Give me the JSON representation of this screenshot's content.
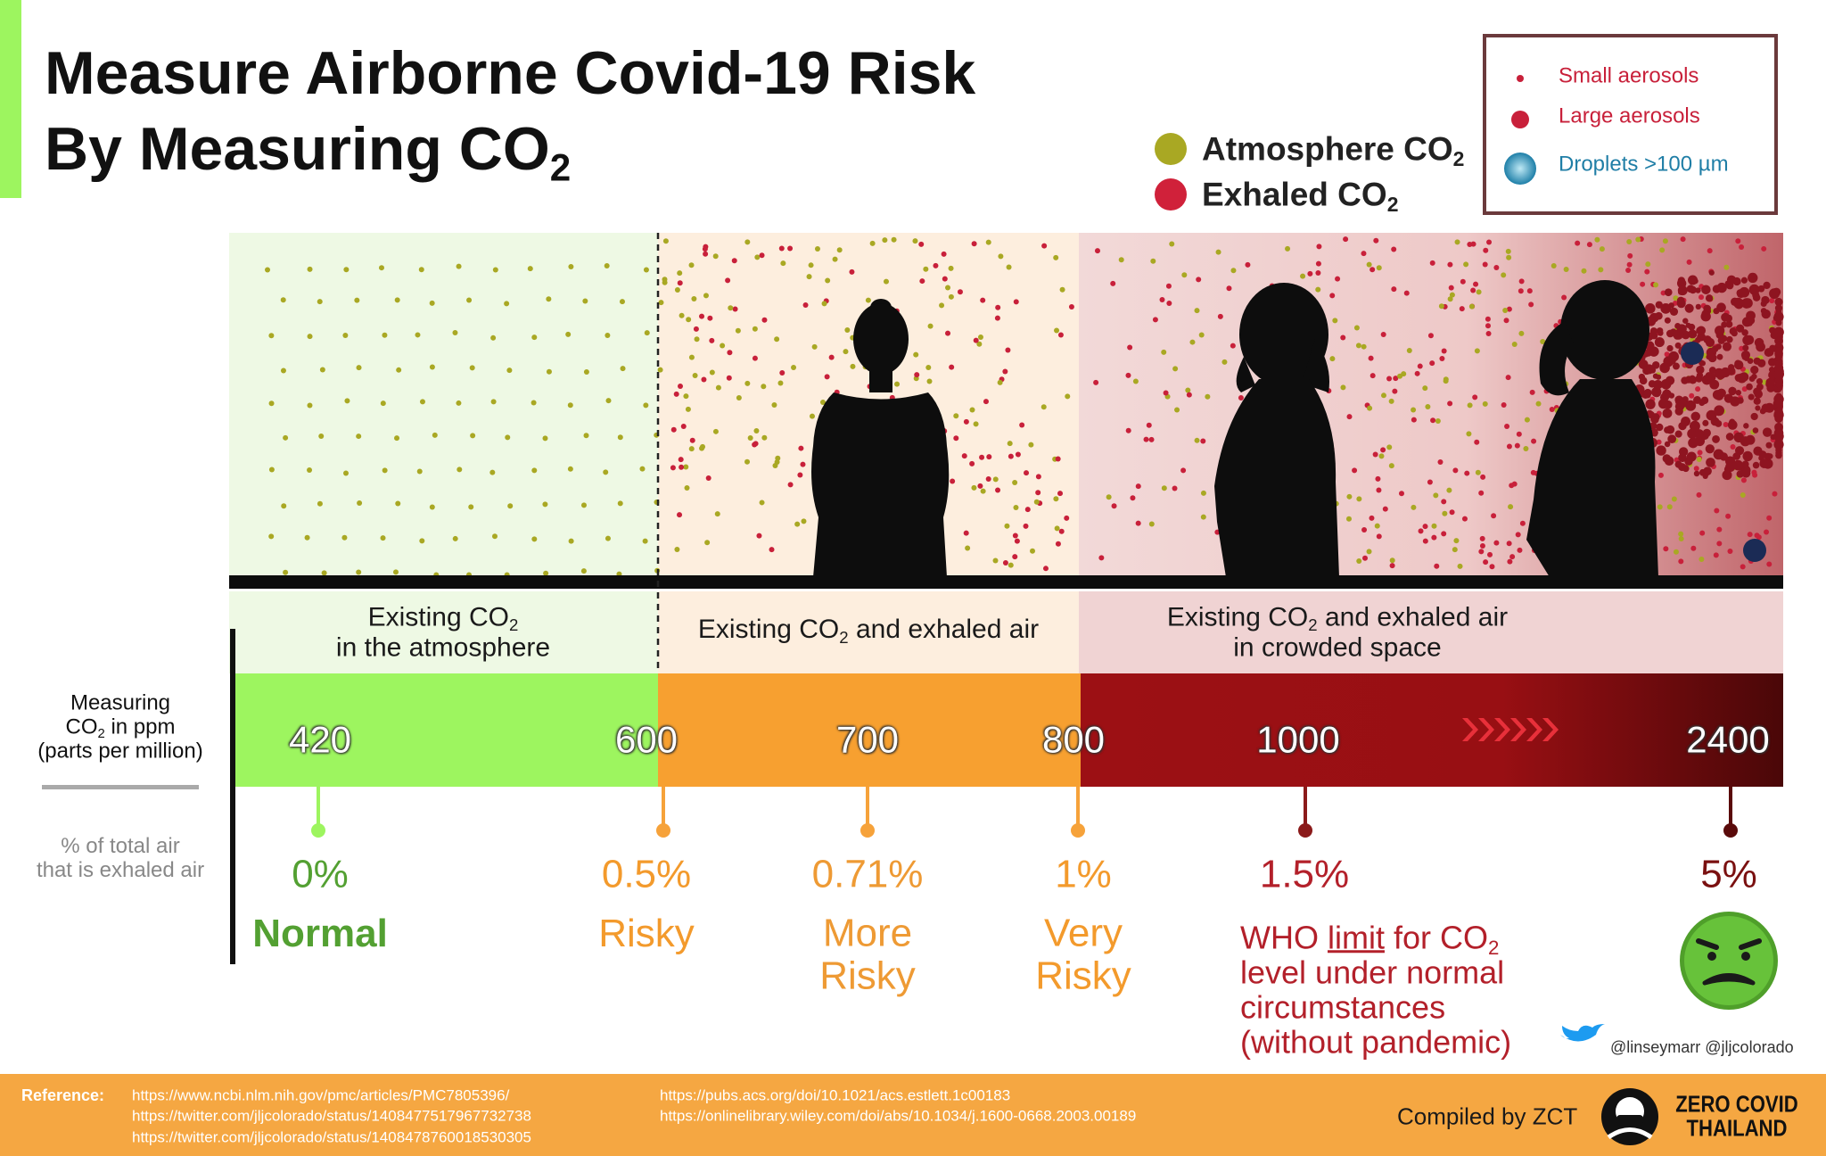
{
  "title": {
    "lines": [
      [
        "Measure Airborne Covid-19 Risk"
      ],
      [
        "By Measuring CO",
        {
          "sub": "2"
        }
      ]
    ]
  },
  "legend": [
    {
      "label": [
        "Atmosphere CO",
        {
          "sub": "2"
        }
      ],
      "color": "#a9a823"
    },
    {
      "label": [
        "Exhaled CO",
        {
          "sub": "2"
        }
      ],
      "color": "#d0213a"
    }
  ],
  "aerosol_legend": [
    "Small aerosols",
    "Large aerosols",
    "Droplets >100 µm"
  ],
  "zones": [
    {
      "lines": [
        [
          "Existing CO",
          {
            "sub": "2"
          }
        ],
        [
          "in the atmosphere"
        ]
      ]
    },
    {
      "lines": [
        [
          "Existing CO",
          {
            "sub": "2"
          },
          " and exhaled air"
        ]
      ]
    },
    {
      "lines": [
        [
          "Existing CO",
          {
            "sub": "2"
          },
          " and exhaled air"
        ],
        [
          "in crowded space"
        ]
      ]
    }
  ],
  "axis_label": {
    "lines": [
      [
        "Measuring"
      ],
      [
        "CO",
        {
          "sub": "2"
        },
        " in ppm"
      ],
      [
        "(parts per million)"
      ]
    ]
  },
  "percent_label": {
    "lines": [
      [
        "% of total air"
      ],
      [
        "that is exhaled air"
      ]
    ]
  },
  "ppm": [
    420,
    600,
    700,
    800,
    1000,
    2400
  ],
  "levels": [
    {
      "percent": "0%",
      "lines": [
        [
          "Normal"
        ]
      ]
    },
    {
      "percent": "0.5%",
      "lines": [
        [
          "Risky"
        ]
      ]
    },
    {
      "percent": "0.71%",
      "lines": [
        [
          "More"
        ],
        [
          "Risky"
        ]
      ]
    },
    {
      "percent": "1%",
      "lines": [
        [
          "Very"
        ],
        [
          "Risky"
        ]
      ]
    },
    {
      "percent": "1.5%",
      "lines": [
        [
          "WHO ",
          {
            "u": "limit"
          },
          " for CO",
          {
            "sub": "2"
          }
        ],
        [
          "level under normal"
        ],
        [
          "circumstances"
        ],
        [
          "(without pandemic)"
        ]
      ]
    },
    {
      "percent": "5%",
      "lines": []
    }
  ],
  "handle": "@linseymarr @jljcolorado",
  "footer": {
    "reference_label": "Reference:",
    "references": [
      "https://www.ncbi.nlm.nih.gov/pmc/articles/PMC7805396/",
      "https://twitter.com/jljcolorado/status/1408477517967732738",
      "https://twitter.com/jljcolorado/status/1408478760018530305",
      "https://pubs.acs.org/doi/10.1021/acs.estlett.1c00183",
      "https://onlinelibrary.wiley.com/doi/abs/10.1034/j.1600-0668.2003.00189"
    ],
    "compiled": "Compiled by ZCT",
    "logo": [
      "ZERO COVID",
      "THAILAND"
    ]
  }
}
